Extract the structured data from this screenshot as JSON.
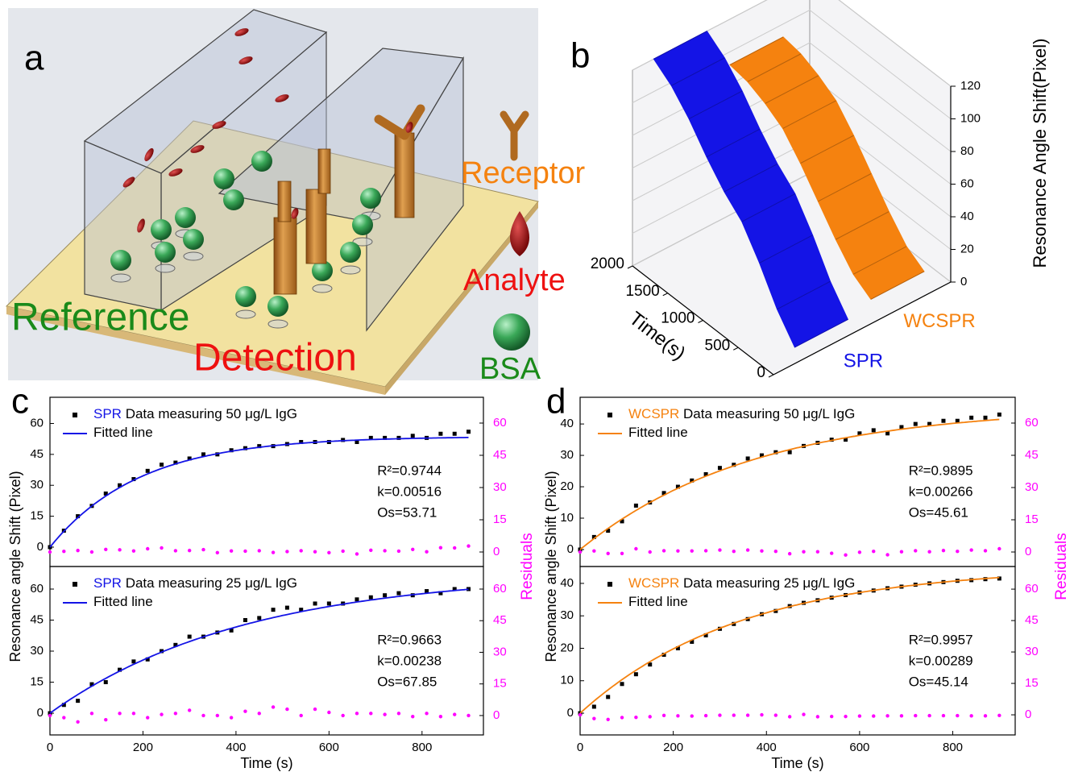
{
  "diagram": {
    "panel": "a",
    "reference": "Reference",
    "detection": "Detection",
    "receptor": "Receptor",
    "analyte": "Analyte",
    "bsa": "BSA"
  },
  "chart_data": [
    {
      "type": "surface3d",
      "panel": "b",
      "x": [
        0,
        250,
        500,
        750,
        1000,
        1250,
        1500,
        1750,
        2000
      ],
      "xlim": [
        0,
        2000
      ],
      "xticks": [
        0,
        500,
        1000,
        1500,
        2000
      ],
      "xlabel": "Time(s)",
      "zlim": [
        0,
        120
      ],
      "zticks": [
        0,
        20,
        40,
        60,
        80,
        100,
        120
      ],
      "zlabel": "Resonance Angle Shift(Pixel)",
      "series": [
        {
          "name": "SPR",
          "color": "#1414e6",
          "values": [
            10,
            25,
            45,
            62,
            72,
            85,
            100,
            112,
            120
          ]
        },
        {
          "name": "WCSPR",
          "color": "#f5820f",
          "values": [
            15,
            22,
            35,
            50,
            65,
            78,
            85,
            90,
            92
          ]
        }
      ]
    },
    {
      "type": "scatter",
      "panel": "c",
      "legend": "upper left",
      "x": [
        0,
        30,
        60,
        90,
        120,
        150,
        180,
        210,
        240,
        270,
        300,
        330,
        360,
        390,
        420,
        450,
        480,
        510,
        540,
        570,
        600,
        630,
        660,
        690,
        720,
        750,
        780,
        810,
        840,
        870,
        900
      ],
      "xlim": [
        0,
        932
      ],
      "ylim": [
        -9.4,
        72.7
      ],
      "yticks": [
        0,
        15,
        30,
        45,
        60
      ],
      "y2lim": [
        -6.75,
        72
      ],
      "y2ticks": [
        0,
        15,
        30,
        45,
        60
      ],
      "series": [
        {
          "name": "Data measuring 50 μg/L IgG",
          "prefix": "SPR",
          "prefix_color": "#1414e6",
          "marker": "square",
          "color": "#000000",
          "values": [
            0,
            8,
            15,
            20,
            26,
            30,
            33,
            37,
            40,
            41,
            43,
            45,
            45,
            47,
            48,
            49,
            49,
            50,
            51,
            51,
            51,
            52,
            51,
            53,
            53,
            53,
            54,
            53,
            55,
            55,
            56
          ]
        },
        {
          "name": "Fitted line",
          "color": "#1414e6",
          "fit": {
            "Os": 53.71,
            "k": 0.00516
          }
        },
        {
          "marker": "circle",
          "color": "#ff00ff",
          "axis": "y2",
          "values": [
            0,
            0.3,
            0.7,
            0,
            1.2,
            1,
            0.5,
            1.5,
            1.9,
            0.6,
            0.7,
            1.1,
            -0.3,
            0.5,
            0.4,
            0.6,
            -0.2,
            0.2,
            0.6,
            0.1,
            -0.3,
            0.4,
            -0.9,
            0.8,
            0.6,
            0.4,
            1.2,
            0.1,
            2,
            1.9,
            2.8
          ]
        }
      ],
      "annotations": [
        "R²=0.9744",
        "k=0.00516",
        "Os=53.71"
      ]
    },
    {
      "type": "scatter",
      "legend": "upper left",
      "x": [
        0,
        30,
        60,
        90,
        120,
        150,
        180,
        210,
        240,
        270,
        300,
        330,
        360,
        390,
        420,
        450,
        480,
        510,
        540,
        570,
        600,
        630,
        660,
        690,
        720,
        750,
        780,
        810,
        840,
        870,
        900
      ],
      "xlim": [
        0,
        932
      ],
      "xticks": [
        0,
        200,
        400,
        600,
        800
      ],
      "xlabel": "Time (s)",
      "ylim": [
        -10.5,
        70.9
      ],
      "yticks": [
        0,
        15,
        30,
        45,
        60
      ],
      "ylabel": "Resonance angle Shift (Pixel)",
      "y2lim": [
        -9.2,
        70.7
      ],
      "y2ticks": [
        0,
        15,
        30,
        45,
        60
      ],
      "y2label": "Residuals",
      "series": [
        {
          "name": "Data measuring 25 μg/L IgG",
          "prefix": "SPR",
          "prefix_color": "#1414e6",
          "marker": "square",
          "color": "#000000",
          "values": [
            0,
            4,
            6,
            14,
            15,
            21,
            25,
            26,
            30,
            33,
            37,
            37,
            39,
            40,
            45,
            46,
            50,
            51,
            50,
            53,
            53,
            53,
            55,
            56,
            57,
            58,
            57,
            59,
            58,
            60,
            60
          ]
        },
        {
          "name": "Fitted line",
          "color": "#1414e6",
          "fit": {
            "Os": 67.85,
            "k": 0.00238
          }
        },
        {
          "marker": "circle",
          "color": "#ff00ff",
          "axis": "y2",
          "values": [
            0,
            -1,
            -3,
            1,
            -2,
            1,
            1,
            -1,
            0.5,
            1,
            2.5,
            0,
            0,
            -1,
            2,
            1,
            4,
            3,
            0,
            3,
            1.5,
            0,
            1,
            1,
            0.5,
            1,
            -0.5,
            1,
            -0.5,
            0.5,
            0
          ]
        }
      ],
      "annotations": [
        "R²=0.9663",
        "k=0.00238",
        "Os=67.85"
      ]
    },
    {
      "type": "scatter",
      "panel": "d",
      "legend": "upper left",
      "x": [
        0,
        30,
        60,
        90,
        120,
        150,
        180,
        210,
        240,
        270,
        300,
        330,
        360,
        390,
        420,
        450,
        480,
        510,
        540,
        570,
        600,
        630,
        660,
        690,
        720,
        750,
        780,
        810,
        840,
        870,
        900
      ],
      "xlim": [
        0,
        934
      ],
      "ylim": [
        -5.4,
        48.5
      ],
      "yticks": [
        0,
        10,
        20,
        30,
        40
      ],
      "y2lim": [
        -6.75,
        72
      ],
      "y2ticks": [
        0,
        15,
        30,
        45,
        60
      ],
      "series": [
        {
          "name": "Data measuring 50 μg/L IgG",
          "prefix": "WCSPR",
          "prefix_color": "#f5820f",
          "marker": "square",
          "color": "#000000",
          "values": [
            0,
            4,
            6,
            9,
            14,
            15,
            18,
            20,
            22,
            24,
            26,
            27,
            29,
            30,
            31,
            31,
            33,
            34,
            35,
            35,
            37,
            38,
            37,
            39,
            40,
            40,
            41,
            41,
            42,
            42,
            43
          ]
        },
        {
          "name": "Fitted line",
          "color": "#f5820f",
          "fit": {
            "Os": 45.61,
            "k": 0.00266
          }
        },
        {
          "marker": "circle",
          "color": "#ff00ff",
          "axis": "y2",
          "values": [
            0,
            0.5,
            -0.7,
            -0.7,
            1.5,
            0,
            0.6,
            0.5,
            0.5,
            0.6,
            0.9,
            0.3,
            0.9,
            0.5,
            0.3,
            -0.8,
            0.1,
            0.1,
            -0.6,
            -1.4,
            -0.1,
            0.3,
            -1.3,
            0.1,
            0.6,
            0.1,
            0.7,
            0.3,
            0.9,
            0.6,
            1.5
          ]
        }
      ],
      "annotations": [
        "R²=0.9895",
        "k=0.00266",
        "Os=45.61"
      ]
    },
    {
      "type": "scatter",
      "legend": "upper left",
      "x": [
        0,
        30,
        60,
        90,
        120,
        150,
        180,
        210,
        240,
        270,
        300,
        330,
        360,
        390,
        420,
        450,
        480,
        510,
        540,
        570,
        600,
        630,
        660,
        690,
        720,
        750,
        780,
        810,
        840,
        870,
        900
      ],
      "xlim": [
        0,
        934
      ],
      "xticks": [
        0,
        200,
        400,
        600,
        800
      ],
      "xlabel": "Time (s)",
      "ylim": [
        -6.7,
        45.2
      ],
      "yticks": [
        0,
        10,
        20,
        30,
        40
      ],
      "ylabel": "Resonance angle Shift (Pixel)",
      "y2lim": [
        -9.6,
        70.8
      ],
      "y2ticks": [
        0,
        15,
        30,
        45,
        60
      ],
      "y2label": "Residuals",
      "series": [
        {
          "name": "Data measuring 25 μg/L IgG",
          "prefix": "WCSPR",
          "prefix_color": "#f5820f",
          "marker": "square",
          "color": "#000000",
          "values": [
            0,
            2,
            5,
            9,
            12,
            15,
            18,
            20,
            22,
            24,
            26,
            27.5,
            29,
            30.5,
            31.5,
            33,
            34,
            34.8,
            35.6,
            36.4,
            37.2,
            37.8,
            38.5,
            39,
            39.6,
            40,
            40.4,
            40.8,
            41,
            41.3,
            41.5
          ]
        },
        {
          "name": "Fitted line",
          "color": "#f5820f",
          "fit": {
            "Os": 45.14,
            "k": 0.00289
          }
        },
        {
          "marker": "circle",
          "color": "#ff00ff",
          "axis": "y2",
          "values": [
            0,
            -1.8,
            -2.2,
            -1.3,
            -1.2,
            -0.9,
            -0.3,
            -0.5,
            -0.6,
            -0.4,
            -0.2,
            -0.2,
            -0.2,
            0,
            -0.2,
            -0.9,
            0.2,
            -0.9,
            -0.8,
            -0.8,
            -0.6,
            -0.6,
            -0.5,
            -0.5,
            -0.4,
            -0.4,
            -0.4,
            -0.4,
            -0.5,
            -0.5,
            -0.3
          ]
        }
      ],
      "annotations": [
        "R²=0.9957",
        "k=0.00289",
        "Os=45.14"
      ]
    }
  ]
}
